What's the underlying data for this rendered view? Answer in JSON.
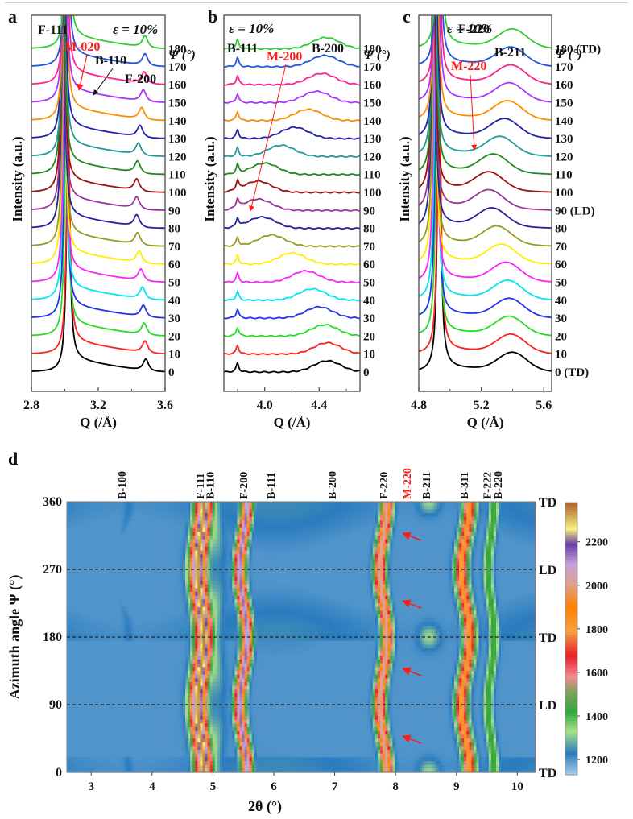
{
  "figure": {
    "panel_letters": [
      "a",
      "b",
      "c",
      "d"
    ]
  },
  "chart_data": [
    {
      "id": "a",
      "type": "line",
      "title": "ε = 10%",
      "xlabel": "Q (/Å)",
      "ylabel": "Intensity (a.u.)",
      "xlim": [
        2.8,
        3.6
      ],
      "xticks": [
        "2.8",
        "3.2",
        "3.6"
      ],
      "legend_title": "Ψ (°)",
      "peak_labels": [
        {
          "text": "F-111",
          "q": 3.01,
          "color": "#111111"
        },
        {
          "text": "M-020",
          "q": 3.03,
          "color": "#ff1a1a",
          "arrow": true
        },
        {
          "text": "B-110",
          "q": 3.1,
          "color": "#111111",
          "arrow": true
        },
        {
          "text": "F-200",
          "q": 3.48,
          "color": "#111111"
        }
      ],
      "series": [
        {
          "psi": "0",
          "color": "#000000",
          "peak1_q": 3.02,
          "peak2_q": 3.485
        },
        {
          "psi": "10",
          "color": "#ff2020",
          "peak1_q": 3.02,
          "peak2_q": 3.48
        },
        {
          "psi": "20",
          "color": "#22dd22",
          "peak1_q": 3.01,
          "peak2_q": 3.475
        },
        {
          "psi": "30",
          "color": "#2233ee",
          "peak1_q": 3.005,
          "peak2_q": 3.47
        },
        {
          "psi": "40",
          "color": "#00e5ee",
          "peak1_q": 3.0,
          "peak2_q": 3.465
        },
        {
          "psi": "50",
          "color": "#ff22ff",
          "peak1_q": 3.0,
          "peak2_q": 3.455
        },
        {
          "psi": "60",
          "color": "#ffee00",
          "peak1_q": 2.995,
          "peak2_q": 3.445
        },
        {
          "psi": "70",
          "color": "#999922",
          "peak1_q": 2.995,
          "peak2_q": 3.435
        },
        {
          "psi": "80",
          "color": "#222299",
          "peak1_q": 2.99,
          "peak2_q": 3.43
        },
        {
          "psi": "90",
          "color": "#993399",
          "peak1_q": 2.99,
          "peak2_q": 3.43
        },
        {
          "psi": "100",
          "color": "#991111",
          "peak1_q": 2.99,
          "peak2_q": 3.43
        },
        {
          "psi": "110",
          "color": "#228822",
          "peak1_q": 2.99,
          "peak2_q": 3.435
        },
        {
          "psi": "120",
          "color": "#229999",
          "peak1_q": 2.995,
          "peak2_q": 3.44
        },
        {
          "psi": "130",
          "color": "#2222aa",
          "peak1_q": 2.995,
          "peak2_q": 3.45
        },
        {
          "psi": "140",
          "color": "#ff8c00",
          "peak1_q": 3.0,
          "peak2_q": 3.46
        },
        {
          "psi": "150",
          "color": "#aa33ff",
          "peak1_q": 3.0,
          "peak2_q": 3.47
        },
        {
          "psi": "160",
          "color": "#ff2288",
          "peak1_q": 3.005,
          "peak2_q": 3.475
        },
        {
          "psi": "170",
          "color": "#2255dd",
          "peak1_q": 3.01,
          "peak2_q": 3.48
        },
        {
          "psi": "180",
          "color": "#33cc33",
          "peak1_q": 3.015,
          "peak2_q": 3.48
        }
      ]
    },
    {
      "id": "b",
      "type": "line",
      "title": "ε = 10%",
      "xlabel": "Q (/Å)",
      "ylabel": "Intensity (a.u.)",
      "xlim": [
        3.7,
        4.7
      ],
      "xticks": [
        "4.0",
        "4.4"
      ],
      "legend_title": "Ψ (°)",
      "peak_labels": [
        {
          "text": "B-111",
          "q": 3.8,
          "color": "#111111"
        },
        {
          "text": "M-200",
          "q": 3.85,
          "color": "#ff1a1a",
          "arrow": true
        },
        {
          "text": "B-200",
          "q": 4.45,
          "color": "#111111"
        }
      ],
      "series": [
        {
          "psi": "0",
          "color": "#000000",
          "broad_q": 4.46
        },
        {
          "psi": "10",
          "color": "#ff2020",
          "broad_q": 4.46
        },
        {
          "psi": "20",
          "color": "#22dd22",
          "broad_q": 4.44
        },
        {
          "psi": "30",
          "color": "#2233ee",
          "broad_q": 4.4
        },
        {
          "psi": "40",
          "color": "#00e5ee",
          "broad_q": 4.35
        },
        {
          "psi": "50",
          "color": "#ff22ff",
          "broad_q": 4.3
        },
        {
          "psi": "60",
          "color": "#ffee00",
          "broad_q": 4.2
        },
        {
          "psi": "70",
          "color": "#999922",
          "broad_q": 4.05
        },
        {
          "psi": "80",
          "color": "#222299",
          "broad_q": 3.98
        },
        {
          "psi": "90",
          "color": "#993399",
          "broad_q": 3.95
        },
        {
          "psi": "100",
          "color": "#991111",
          "broad_q": 3.95
        },
        {
          "psi": "110",
          "color": "#228822",
          "broad_q": 4.0
        },
        {
          "psi": "120",
          "color": "#229999",
          "broad_q": 4.12
        },
        {
          "psi": "130",
          "color": "#2222aa",
          "broad_q": 4.22
        },
        {
          "psi": "140",
          "color": "#ff8c00",
          "broad_q": 4.32
        },
        {
          "psi": "150",
          "color": "#aa33ff",
          "broad_q": 4.38
        },
        {
          "psi": "160",
          "color": "#ff2288",
          "broad_q": 4.42
        },
        {
          "psi": "170",
          "color": "#2255dd",
          "broad_q": 4.44
        },
        {
          "psi": "180",
          "color": "#33cc33",
          "broad_q": 4.45
        }
      ]
    },
    {
      "id": "c",
      "type": "line",
      "title": "ε = 10%",
      "xlabel": "Q (/Å)",
      "ylabel": "Intensity (a.u.)",
      "xlim": [
        4.8,
        5.65
      ],
      "xticks": [
        "4.8",
        "5.2",
        "5.6"
      ],
      "legend_title": "Ψ (°)",
      "peak_labels": [
        {
          "text": "F-220",
          "q": 4.92,
          "color": "#111111"
        },
        {
          "text": "M-220",
          "q": 5.13,
          "color": "#ff1a1a",
          "arrow": true
        },
        {
          "text": "B-211",
          "q": 5.39,
          "color": "#111111"
        }
      ],
      "series": [
        {
          "psi": "0 (TD)",
          "color": "#000000",
          "peak1_q": 4.93,
          "broad_q": 5.4
        },
        {
          "psi": "10",
          "color": "#ff2020",
          "peak1_q": 4.93,
          "broad_q": 5.39
        },
        {
          "psi": "20",
          "color": "#22dd22",
          "peak1_q": 4.92,
          "broad_q": 5.38
        },
        {
          "psi": "30",
          "color": "#2233ee",
          "peak1_q": 4.915,
          "broad_q": 5.38
        },
        {
          "psi": "40",
          "color": "#00e5ee",
          "peak1_q": 4.91,
          "broad_q": 5.37
        },
        {
          "psi": "50",
          "color": "#ff22ff",
          "peak1_q": 4.905,
          "broad_q": 5.36
        },
        {
          "psi": "60",
          "color": "#ffee00",
          "peak1_q": 4.9,
          "broad_q": 5.33
        },
        {
          "psi": "70",
          "color": "#999922",
          "peak1_q": 4.9,
          "broad_q": 5.3
        },
        {
          "psi": "80",
          "color": "#222299",
          "peak1_q": 4.895,
          "broad_q": 5.27
        },
        {
          "psi": "90 (LD)",
          "color": "#993399",
          "peak1_q": 4.895,
          "broad_q": 5.25
        },
        {
          "psi": "100",
          "color": "#991111",
          "peak1_q": 4.895,
          "broad_q": 5.25
        },
        {
          "psi": "110",
          "color": "#228822",
          "peak1_q": 4.9,
          "broad_q": 5.28
        },
        {
          "psi": "120",
          "color": "#229999",
          "peak1_q": 4.9,
          "broad_q": 5.32
        },
        {
          "psi": "130",
          "color": "#2222aa",
          "peak1_q": 4.905,
          "broad_q": 5.35
        },
        {
          "psi": "140",
          "color": "#ff8c00",
          "peak1_q": 4.91,
          "broad_q": 5.37
        },
        {
          "psi": "150",
          "color": "#aa33ff",
          "peak1_q": 4.915,
          "broad_q": 5.38
        },
        {
          "psi": "160",
          "color": "#ff2288",
          "peak1_q": 4.92,
          "broad_q": 5.39
        },
        {
          "psi": "170",
          "color": "#2255dd",
          "peak1_q": 4.925,
          "broad_q": 5.39
        },
        {
          "psi": "180 (TD)",
          "color": "#33cc33",
          "peak1_q": 4.93,
          "broad_q": 5.4
        }
      ]
    },
    {
      "id": "d",
      "type": "heatmap",
      "xlabel": "2θ (°)",
      "ylabel": "Azimuth angle Ψ (°)",
      "xlim": [
        2.6,
        10.3
      ],
      "ylim": [
        0,
        360
      ],
      "xticks": [
        "3",
        "4",
        "5",
        "6",
        "7",
        "8",
        "9",
        "10"
      ],
      "yticks": [
        "0",
        "90",
        "180",
        "270",
        "360"
      ],
      "right_labels": [
        {
          "psi": 0,
          "text": "TD"
        },
        {
          "psi": 90,
          "text": "LD"
        },
        {
          "psi": 180,
          "text": "TD"
        },
        {
          "psi": 270,
          "text": "LD"
        },
        {
          "psi": 360,
          "text": "TD"
        }
      ],
      "dashed_lines_psi": [
        90,
        180,
        270
      ],
      "peak_labels": [
        {
          "text": "B-100",
          "two_theta": 3.5,
          "color": "#111111"
        },
        {
          "text": "F-111",
          "two_theta": 4.78,
          "color": "#111111"
        },
        {
          "text": "B-110",
          "two_theta": 4.95,
          "color": "#111111"
        },
        {
          "text": "F-200",
          "two_theta": 5.5,
          "color": "#111111"
        },
        {
          "text": "B-111",
          "two_theta": 5.95,
          "color": "#111111"
        },
        {
          "text": "B-200",
          "two_theta": 6.95,
          "color": "#111111"
        },
        {
          "text": "F-220",
          "two_theta": 7.8,
          "color": "#111111"
        },
        {
          "text": "M-220",
          "two_theta": 8.18,
          "color": "#ff1a1a"
        },
        {
          "text": "B-211",
          "two_theta": 8.5,
          "color": "#111111"
        },
        {
          "text": "B-311",
          "two_theta": 9.12,
          "color": "#111111"
        },
        {
          "text": "F-222",
          "two_theta": 9.5,
          "color": "#111111"
        },
        {
          "text": "B-220",
          "two_theta": 9.68,
          "color": "#111111"
        }
      ],
      "arrows_psi": [
        45,
        135,
        225,
        315
      ],
      "colorbar": {
        "min": 1130,
        "max": 2380,
        "ticks": [
          "1200",
          "1400",
          "1600",
          "1800",
          "2000",
          "2200"
        ],
        "stops": [
          {
            "v": 1130,
            "color": "#a8d0e8"
          },
          {
            "v": 1230,
            "color": "#2a7bbf"
          },
          {
            "v": 1330,
            "color": "#a8e08a"
          },
          {
            "v": 1420,
            "color": "#2ea83a"
          },
          {
            "v": 1520,
            "color": "#8aa060"
          },
          {
            "v": 1580,
            "color": "#f58a94"
          },
          {
            "v": 1680,
            "color": "#e8202a"
          },
          {
            "v": 1790,
            "color": "#f7a040"
          },
          {
            "v": 1900,
            "color": "#ff8200"
          },
          {
            "v": 2010,
            "color": "#e0a090"
          },
          {
            "v": 2100,
            "color": "#c4a0dd"
          },
          {
            "v": 2190,
            "color": "#6a3aa8"
          },
          {
            "v": 2260,
            "color": "#f5f07a"
          },
          {
            "v": 2380,
            "color": "#b0602a"
          }
        ]
      },
      "rings": [
        {
          "name": "F-111",
          "two_theta": 4.8,
          "amp": 0.05,
          "width": 0.09,
          "intensity": 2350
        },
        {
          "name": "B-110",
          "two_theta": 4.98,
          "amp": 0.07,
          "width": 0.12,
          "intensity": 1420,
          "modulated": true
        },
        {
          "name": "F-200",
          "two_theta": 5.5,
          "amp": 0.06,
          "width": 0.06,
          "intensity": 2150
        },
        {
          "name": "F-220",
          "two_theta": 7.8,
          "amp": 0.06,
          "width": 0.06,
          "intensity": 2050
        },
        {
          "name": "B-211",
          "two_theta": 8.55,
          "amp": 0.0,
          "width": 0.12,
          "intensity": 1320,
          "modulated": true
        },
        {
          "name": "B-311",
          "two_theta": 9.15,
          "amp": 0.07,
          "width": 0.07,
          "intensity": 1850
        },
        {
          "name": "F-222",
          "two_theta": 9.57,
          "amp": 0.05,
          "width": 0.05,
          "intensity": 1450
        }
      ]
    }
  ]
}
